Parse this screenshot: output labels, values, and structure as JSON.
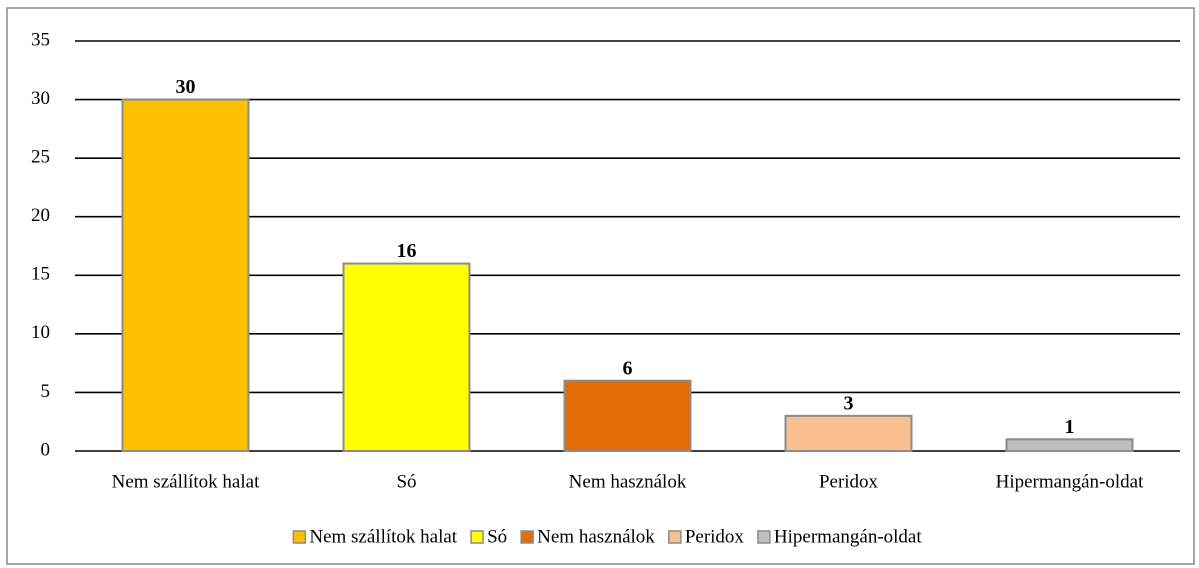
{
  "chart_data": {
    "type": "bar",
    "categories": [
      "Nem szállítok halat",
      "Só",
      "Nem használok",
      "Peridox",
      "Hipermangán-oldat"
    ],
    "values": [
      30,
      16,
      6,
      3,
      1
    ],
    "colors": [
      "#ffc000",
      "#ffff00",
      "#e36c09",
      "#fac090",
      "#bfbfbf"
    ],
    "ylim": [
      0,
      35
    ],
    "yticks": [
      0,
      5,
      10,
      15,
      20,
      25,
      30,
      35
    ],
    "grid": true,
    "legend": "bottom"
  }
}
